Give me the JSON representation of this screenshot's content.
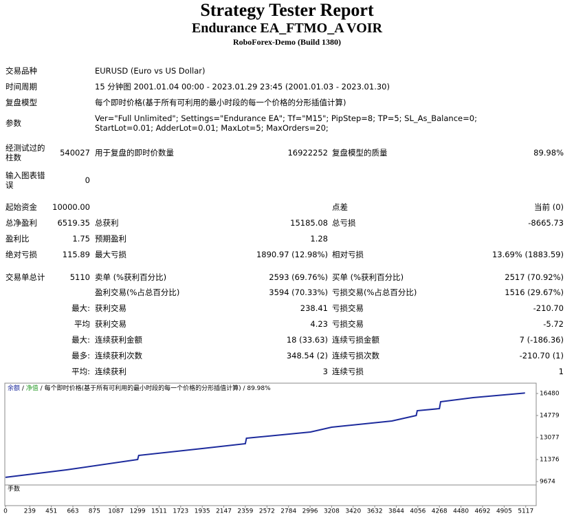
{
  "header": {
    "title": "Strategy Tester Report",
    "subtitle": "Endurance EA_FTMO_A VOIR",
    "build": "RoboForex-Demo (Build 1380)"
  },
  "info": [
    [
      "交易品种",
      "EURUSD (Euro vs US Dollar)"
    ],
    [
      "时间周期",
      "15 分钟图 2001.01.04 00:00 - 2023.01.29 23:45 (2001.01.03 - 2023.01.30)"
    ],
    [
      "复盘模型",
      "每个即时价格(基于所有可利用的最小时段的每一个价格的分形插值计算)"
    ],
    [
      "参数",
      "Ver=\"Full Unlimited\"; Settings=\"Endurance EA\"; Tf=\"M15\"; PipStep=8; TP=5; SL_As_Balance=0; StartLot=0.01; AdderLot=0.01; MaxLot=5; MaxOrders=20;"
    ]
  ],
  "stats": [
    [
      "经测试过的柱数",
      "540027",
      "用于复盘的即时价数量",
      "16922252",
      "复盘模型的质量",
      "89.98%"
    ],
    [
      "输入图表错误",
      "0",
      null,
      null,
      null,
      null
    ],
    [
      "起始资金",
      "10000.00",
      null,
      null,
      "点差",
      "当前 (0)"
    ],
    [
      "总净盈利",
      "6519.35",
      "总获利",
      "15185.08",
      "总亏损",
      "-8665.73"
    ],
    [
      "盈利比",
      "1.75",
      "预期盈利",
      "1.28",
      null,
      null
    ],
    [
      "绝对亏损",
      "115.89",
      "最大亏损",
      "1890.97 (12.98%)",
      "相对亏损",
      "13.69% (1883.59)"
    ],
    [
      "交易单总计",
      "5110",
      "卖单 (%获利百分比)",
      "2593 (69.76%)",
      "买单 (%获利百分比)",
      "2517 (70.92%)"
    ],
    [
      null,
      null,
      "盈利交易(%占总百分比)",
      "3594 (70.33%)",
      "亏损交易(%占总百分比)",
      "1516 (29.67%)"
    ],
    [
      null,
      "最大:",
      "获利交易",
      "238.41",
      "亏损交易",
      "-210.70"
    ],
    [
      null,
      "平均",
      "获利交易",
      "4.23",
      "亏损交易",
      "-5.72"
    ],
    [
      null,
      "最大:",
      "连续获利金额",
      "18 (33.63)",
      "连续亏损金额",
      "7 (-186.36)"
    ],
    [
      null,
      "最多:",
      "连续获利次数",
      "348.54 (2)",
      "连续亏损次数",
      "-210.70 (1)"
    ],
    [
      null,
      "平均:",
      "连续获利",
      "3",
      "连续亏损",
      "1"
    ]
  ],
  "chart_data": {
    "type": "line",
    "legend": [
      "余额",
      "净值",
      "每个即时价格(基于所有可利用的最小时段的每一个价格的分形插值计算)",
      "89.98%"
    ],
    "volume_label": "手数",
    "x": [
      0,
      600,
      1300,
      1310,
      1935,
      2359,
      2370,
      3000,
      3208,
      3800,
      4040,
      4050,
      4268,
      4280,
      4600,
      5110
    ],
    "series": [
      {
        "name": "余额",
        "color": "#1c2a9c",
        "values": [
          10000,
          10578,
          11375,
          11694,
          12226,
          12598,
          13024,
          13502,
          13874,
          14353,
          14778,
          15150,
          15310,
          15842,
          16161,
          16519
        ]
      }
    ],
    "xlim": [
      0,
      5220
    ],
    "ylim": [
      9408,
      17225
    ],
    "xticks": [
      0,
      239,
      451,
      663,
      875,
      1087,
      1299,
      1511,
      1723,
      1935,
      2147,
      2359,
      2572,
      2784,
      2996,
      3208,
      3420,
      3632,
      3844,
      4056,
      4268,
      4480,
      4692,
      4905,
      5117
    ],
    "yticks": [
      9674,
      11376,
      13077,
      14779,
      16480
    ]
  }
}
